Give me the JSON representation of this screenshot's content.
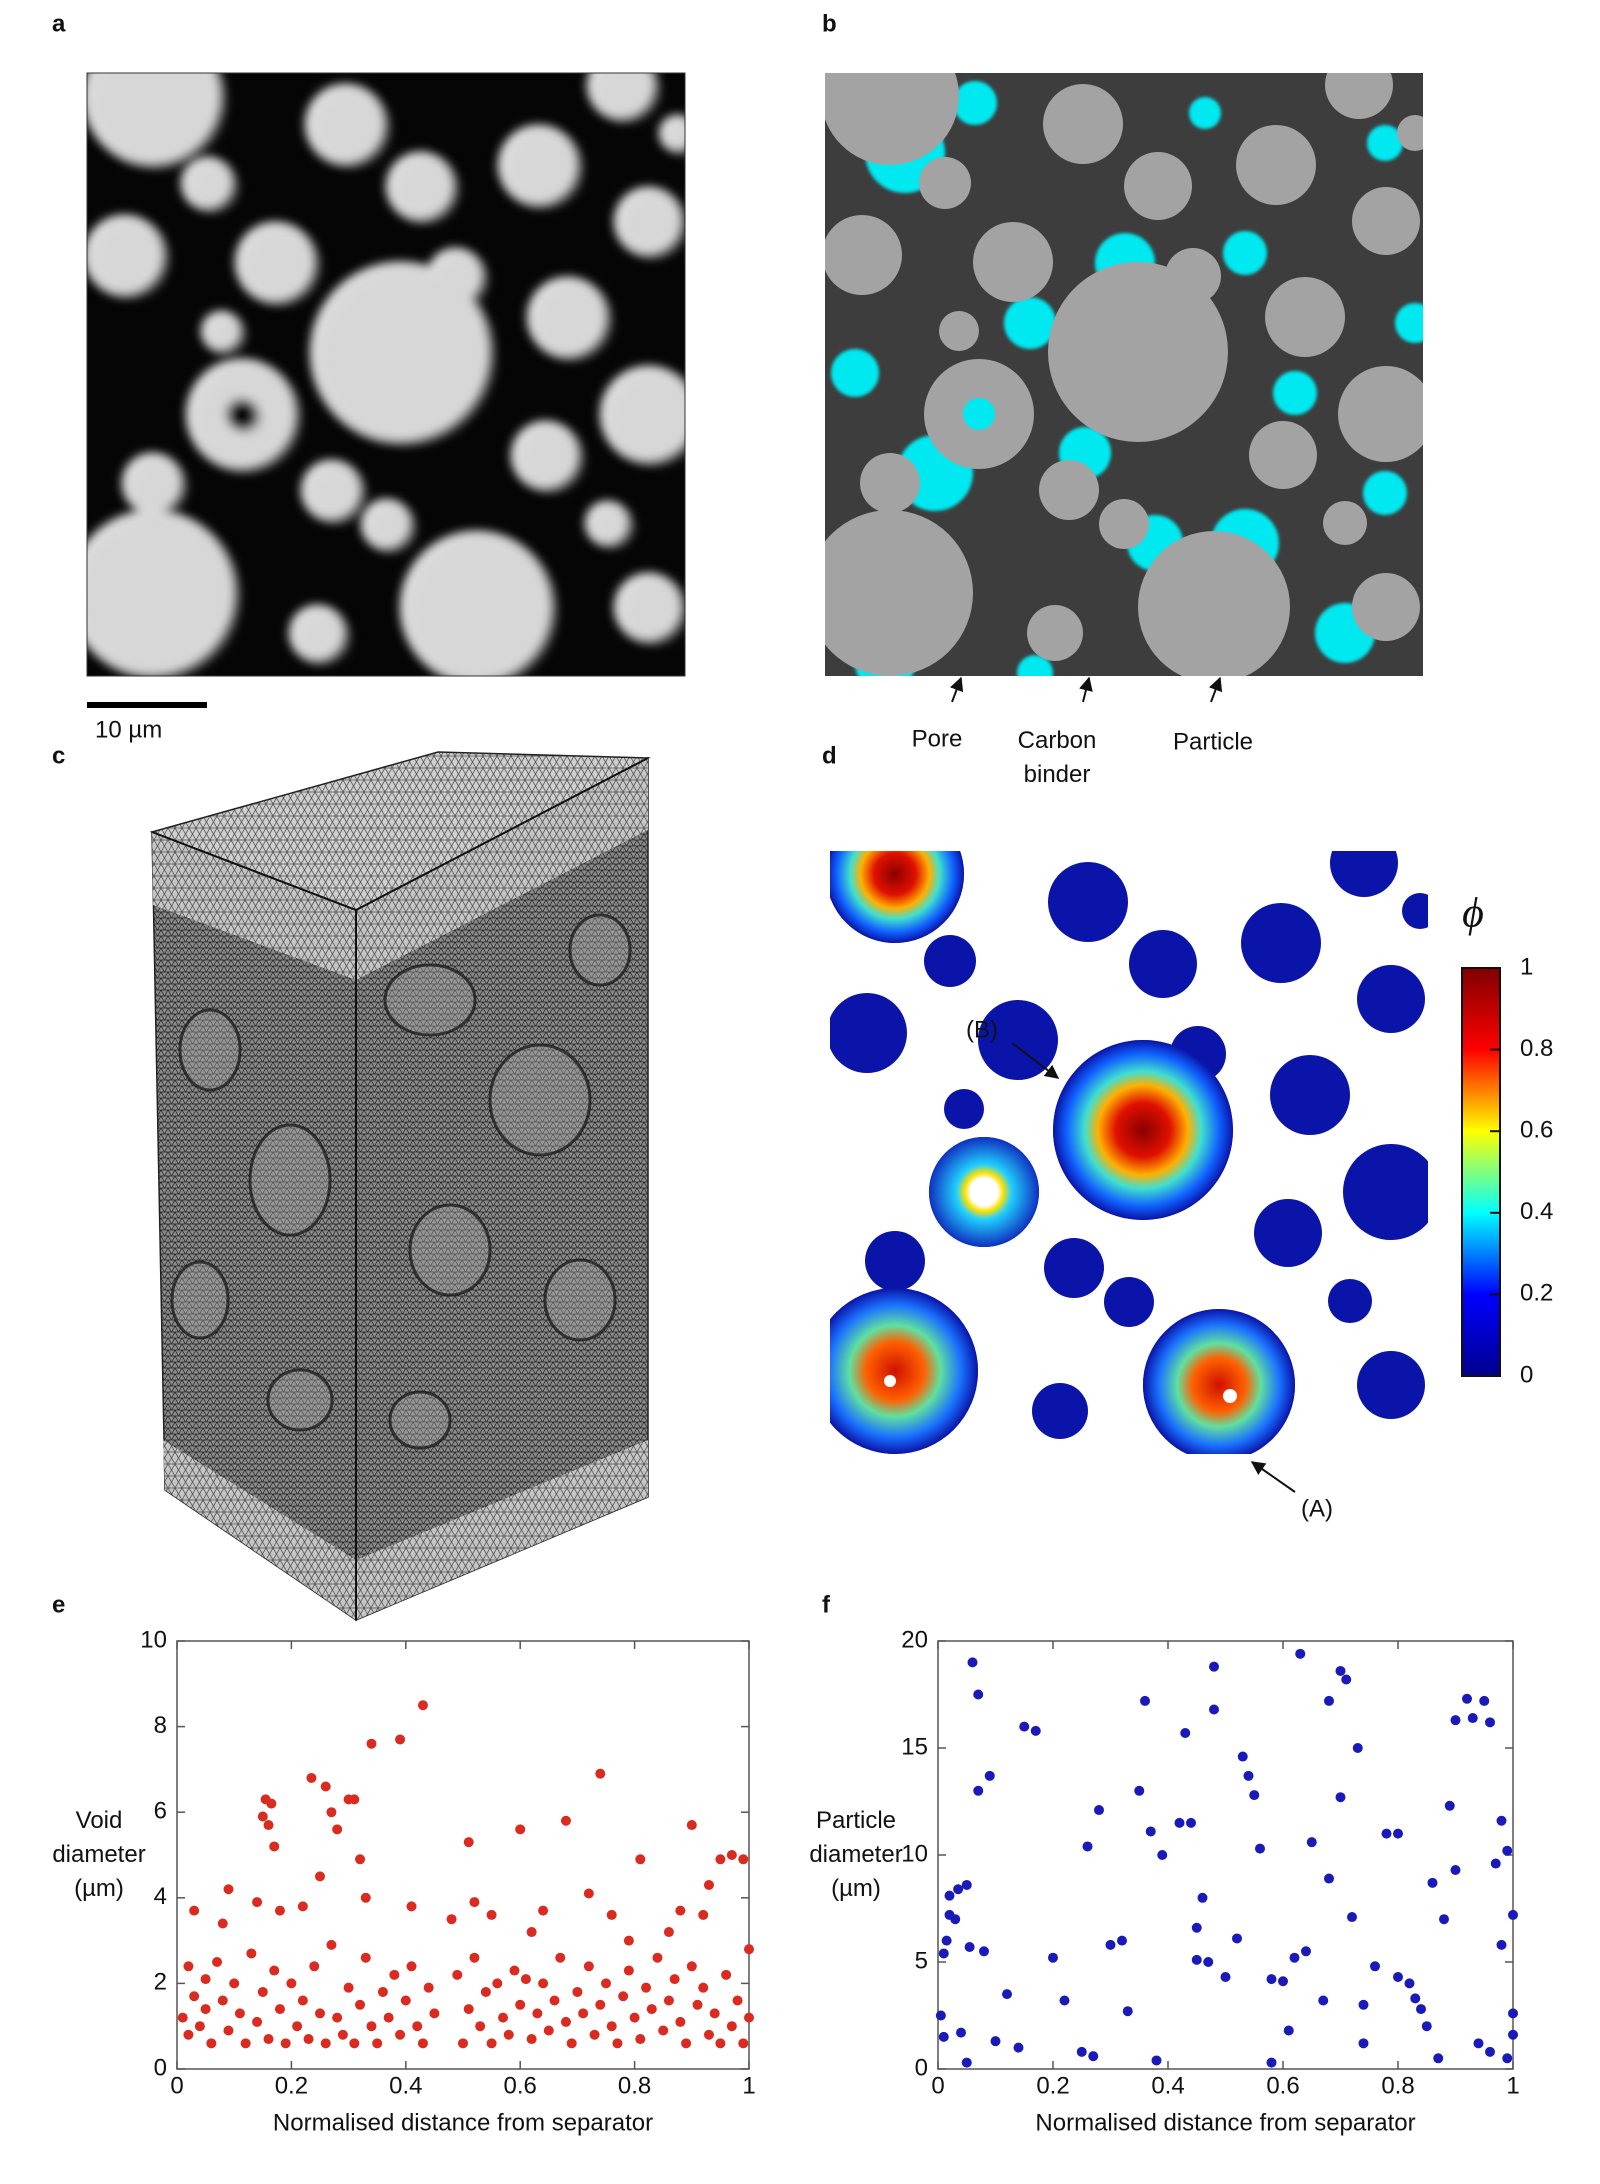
{
  "figure": {
    "panel_labels": [
      "a",
      "b",
      "c",
      "d",
      "e",
      "f"
    ],
    "scale_bar": "10 µm",
    "segmentation_labels": [
      "Pore",
      "Carbon binder",
      "Particle"
    ],
    "colorbar": {
      "symbol": "ϕ",
      "ticks": [
        0,
        0.2,
        0.4,
        0.6,
        0.8,
        1
      ],
      "lim": [
        0,
        1
      ],
      "colors": [
        "#00008f",
        "#0000ff",
        "#00ffff",
        "#ffff00",
        "#ff0000",
        "#800000"
      ]
    },
    "annotations": [
      "(B)",
      "(A)"
    ]
  },
  "chart_data": [
    {
      "type": "scatter",
      "x_label": "Normalised distance from separator",
      "y_label": "Void diameter (µm)",
      "x": [
        0.03,
        0.08,
        0.09,
        0.14,
        0.15,
        0.155,
        0.16,
        0.165,
        0.17,
        0.18,
        0.22,
        0.235,
        0.25,
        0.26,
        0.27,
        0.28,
        0.3,
        0.31,
        0.32,
        0.33,
        0.34,
        0.39,
        0.41,
        0.43,
        0.48,
        0.51,
        0.52,
        0.55,
        0.6,
        0.62,
        0.64,
        0.68,
        0.72,
        0.74,
        0.76,
        0.79,
        0.81,
        0.86,
        0.9,
        0.92,
        0.95,
        0.97,
        0.99,
        0.93,
        0.88,
        0.01,
        0.02,
        0.02,
        0.03,
        0.04,
        0.05,
        0.05,
        0.06,
        0.07,
        0.08,
        0.09,
        0.1,
        0.11,
        0.12,
        0.13,
        0.14,
        0.15,
        0.16,
        0.17,
        0.18,
        0.19,
        0.2,
        0.21,
        0.22,
        0.23,
        0.24,
        0.25,
        0.26,
        0.27,
        0.28,
        0.29,
        0.3,
        0.31,
        0.32,
        0.33,
        0.34,
        0.35,
        0.36,
        0.37,
        0.38,
        0.39,
        0.4,
        0.41,
        0.42,
        0.43,
        0.44,
        0.45,
        0.49,
        0.5,
        0.51,
        0.52,
        0.53,
        0.54,
        0.55,
        0.56,
        0.57,
        0.58,
        0.59,
        0.6,
        0.61,
        0.62,
        0.63,
        0.64,
        0.65,
        0.66,
        0.67,
        0.68,
        0.69,
        0.7,
        0.71,
        0.72,
        0.73,
        0.74,
        0.75,
        0.76,
        0.77,
        0.78,
        0.79,
        0.8,
        0.81,
        0.82,
        0.83,
        0.84,
        0.85,
        0.86,
        0.87,
        0.88,
        0.89,
        0.9,
        0.91,
        0.92,
        0.93,
        0.94,
        0.95,
        0.96,
        0.97,
        0.98,
        0.99,
        1.0,
        1.0
      ],
      "series": [
        {
          "color": "#d92b1f",
          "values": [
            3.7,
            3.4,
            4.2,
            3.9,
            5.9,
            6.3,
            5.7,
            6.2,
            5.2,
            3.7,
            3.8,
            6.8,
            4.5,
            6.6,
            6.0,
            5.6,
            6.3,
            6.3,
            4.9,
            4.0,
            7.6,
            7.7,
            3.8,
            8.5,
            3.5,
            5.3,
            3.9,
            3.6,
            5.6,
            3.2,
            3.7,
            5.8,
            4.1,
            6.9,
            3.6,
            3.0,
            4.9,
            3.2,
            5.7,
            3.6,
            4.9,
            5.0,
            4.9,
            4.3,
            3.7,
            1.2,
            2.4,
            0.8,
            1.7,
            1.0,
            2.1,
            1.4,
            0.6,
            2.5,
            1.6,
            0.9,
            2.0,
            1.3,
            0.6,
            2.7,
            1.1,
            1.8,
            0.7,
            2.3,
            1.4,
            0.6,
            2.0,
            1.0,
            1.6,
            0.7,
            2.4,
            1.3,
            0.6,
            2.9,
            1.2,
            0.8,
            1.9,
            0.6,
            1.5,
            2.6,
            1.0,
            0.6,
            1.8,
            1.2,
            2.2,
            0.8,
            1.6,
            2.4,
            1.0,
            0.6,
            1.9,
            1.3,
            2.2,
            0.6,
            1.4,
            2.6,
            1.0,
            1.8,
            0.6,
            2.0,
            1.2,
            0.8,
            2.3,
            1.5,
            2.1,
            0.7,
            1.3,
            2.0,
            0.9,
            1.6,
            2.6,
            1.1,
            0.6,
            1.8,
            1.3,
            2.4,
            0.8,
            1.5,
            2.0,
            1.0,
            0.6,
            1.7,
            2.3,
            1.2,
            0.7,
            1.9,
            1.4,
            2.6,
            0.9,
            1.6,
            2.1,
            1.1,
            0.6,
            2.4,
            1.5,
            1.9,
            0.8,
            1.3,
            0.6,
            2.2,
            1.0,
            1.6,
            0.6,
            2.8,
            1.2
          ]
        }
      ],
      "xlim": [
        0,
        1
      ],
      "ylim": [
        0,
        10
      ],
      "xticks": [
        0,
        0.2,
        0.4,
        0.6,
        0.8,
        1
      ],
      "yticks": [
        0,
        2,
        4,
        6,
        8,
        10
      ]
    },
    {
      "type": "scatter",
      "x_label": "Normalised distance from separator",
      "y_label": "Particle diameter (µm)",
      "x": [
        0.005,
        0.01,
        0.01,
        0.015,
        0.02,
        0.02,
        0.03,
        0.035,
        0.04,
        0.05,
        0.055,
        0.06,
        0.07,
        0.07,
        0.08,
        0.09,
        0.1,
        0.12,
        0.14,
        0.15,
        0.17,
        0.2,
        0.22,
        0.26,
        0.27,
        0.28,
        0.3,
        0.32,
        0.35,
        0.36,
        0.37,
        0.38,
        0.39,
        0.42,
        0.43,
        0.44,
        0.45,
        0.46,
        0.47,
        0.48,
        0.48,
        0.5,
        0.52,
        0.53,
        0.54,
        0.55,
        0.56,
        0.58,
        0.6,
        0.61,
        0.63,
        0.64,
        0.65,
        0.67,
        0.68,
        0.7,
        0.71,
        0.7,
        0.72,
        0.73,
        0.74,
        0.76,
        0.78,
        0.8,
        0.8,
        0.82,
        0.83,
        0.84,
        0.86,
        0.87,
        0.88,
        0.89,
        0.9,
        0.9,
        0.92,
        0.93,
        0.95,
        0.96,
        0.97,
        0.98,
        0.99,
        1.0,
        1.0,
        1.0,
        0.94,
        0.96,
        0.99,
        0.62,
        0.33,
        0.25,
        0.05,
        0.45,
        0.74,
        0.85,
        0.98,
        0.68,
        0.58
      ],
      "series": [
        {
          "color": "#1a1ab8",
          "values": [
            2.5,
            1.5,
            5.4,
            6.0,
            7.2,
            8.1,
            7.0,
            8.4,
            1.7,
            8.6,
            5.7,
            19.0,
            17.5,
            13.0,
            5.5,
            13.7,
            1.3,
            3.5,
            1.0,
            16.0,
            15.8,
            5.2,
            3.2,
            10.4,
            0.6,
            12.1,
            5.8,
            6.0,
            13.0,
            17.2,
            11.1,
            0.4,
            10.0,
            11.5,
            15.7,
            11.5,
            6.6,
            8.0,
            5.0,
            18.8,
            16.8,
            4.3,
            6.1,
            14.6,
            13.7,
            12.8,
            10.3,
            4.2,
            4.1,
            1.8,
            19.4,
            5.5,
            10.6,
            3.2,
            17.2,
            18.6,
            18.2,
            12.7,
            7.1,
            15.0,
            1.2,
            4.8,
            11.0,
            11.0,
            4.3,
            4.0,
            3.3,
            2.8,
            8.7,
            0.5,
            7.0,
            12.3,
            9.3,
            16.3,
            17.3,
            16.4,
            17.2,
            16.2,
            9.6,
            11.6,
            10.2,
            7.2,
            2.6,
            1.6,
            1.2,
            0.8,
            0.5,
            5.2,
            2.7,
            0.8,
            0.3,
            5.1,
            3.0,
            2.0,
            5.8,
            8.9,
            0.3
          ]
        }
      ],
      "xlim": [
        0,
        1
      ],
      "ylim": [
        0,
        20
      ],
      "xticks": [
        0,
        0.2,
        0.4,
        0.6,
        0.8,
        1
      ],
      "yticks": [
        0,
        5,
        10,
        15,
        20
      ]
    }
  ]
}
